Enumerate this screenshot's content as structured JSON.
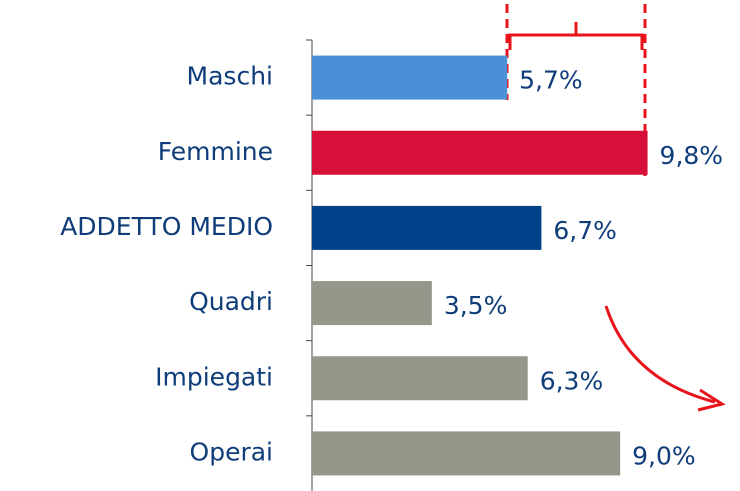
{
  "chart_data": {
    "type": "hbar",
    "categories": [
      "Maschi",
      "Femmine",
      "ADDETTO MEDIO",
      "Quadri",
      "Impiegati",
      "Operai"
    ],
    "values": [
      5.7,
      9.8,
      6.7,
      3.5,
      6.3,
      9.0
    ],
    "value_labels": [
      "5,7%",
      "9,8%",
      "6,7%",
      "3,5%",
      "6,3%",
      "9,0%"
    ],
    "colors": [
      "#4a90d9",
      "#d7103a",
      "#00428a",
      "#96968b",
      "#96968b",
      "#96968b"
    ],
    "xlim": [
      0,
      12.5
    ]
  }
}
